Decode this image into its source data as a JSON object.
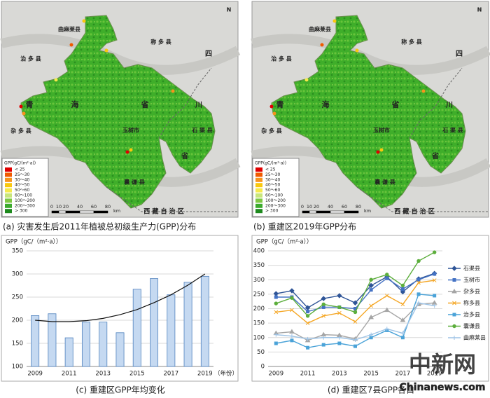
{
  "maps": [
    {
      "caption": "(a) 灾害发生后2011年植被总初级生产力(GPP)分布"
    },
    {
      "caption": "(b) 重建区2019年GPP分布"
    }
  ],
  "map_labels": [
    "曲麻莱县",
    "称 多 县",
    "治 多 县",
    "四",
    "川",
    "省",
    "青",
    "海",
    "省",
    "杂 多 县",
    "玉树市",
    "石 渠 县",
    "囊 谦 县",
    "西 藏 自 治 区",
    "N"
  ],
  "map_legend": {
    "title": "GPP(gC/(m²·a))",
    "items": [
      {
        "label": "< 25",
        "color": "#e00000"
      },
      {
        "label": "25～30",
        "color": "#f05a00"
      },
      {
        "label": "30～40",
        "color": "#f7941d"
      },
      {
        "label": "40～50",
        "color": "#f9c80e"
      },
      {
        "label": "50～60",
        "color": "#f5e94b"
      },
      {
        "label": "60～100",
        "color": "#c8e67a"
      },
      {
        "label": "100～200",
        "color": "#7fc843"
      },
      {
        "label": "200～300",
        "color": "#3caa2d"
      },
      {
        "label": "> 300",
        "color": "#1e8a1e"
      }
    ]
  },
  "map_scale": {
    "ticks": [
      0,
      10,
      20,
      40,
      60,
      80
    ],
    "unit": "km"
  },
  "chart_data": [
    {
      "type": "bar",
      "title": "GPP（gC/（m²·a））",
      "caption": "(c) 重建区GPP年均变化",
      "x_unit": "（年份）",
      "categories": [
        "2009",
        null,
        "2011",
        null,
        "2013",
        null,
        "2015",
        null,
        "2017",
        null,
        "2019"
      ],
      "values": [
        210,
        214,
        162,
        196,
        196,
        173,
        267,
        290,
        255,
        282,
        295
      ],
      "trend": [
        200,
        197,
        197,
        199,
        204,
        212,
        223,
        238,
        255,
        276,
        300
      ],
      "color": "#c5d9f1",
      "edge_color": "#4f81bd",
      "ylim": [
        100,
        350
      ],
      "yticks": [
        100,
        150,
        200,
        250,
        300,
        350
      ],
      "grid": true
    },
    {
      "type": "line",
      "title": "GPP（gC/（m²·a））",
      "caption": "(d) 重建区7县GPP各自",
      "categories": [
        "2009",
        null,
        "2011",
        null,
        "2013",
        null,
        "2015",
        null,
        "2017",
        null,
        "2019"
      ],
      "series": [
        {
          "name": "石渠县",
          "color": "#2f5597",
          "marker": "diamond",
          "values": [
            252,
            262,
            203,
            235,
            245,
            220,
            280,
            310,
            258,
            303,
            322
          ]
        },
        {
          "name": "玉树市",
          "color": "#4472c4",
          "marker": "square",
          "values": [
            240,
            240,
            190,
            205,
            205,
            200,
            265,
            305,
            268,
            300,
            320
          ]
        },
        {
          "name": "杂多县",
          "color": "#a5a5a5",
          "marker": "triangle",
          "values": [
            115,
            120,
            90,
            110,
            108,
            95,
            170,
            195,
            160,
            215,
            220
          ]
        },
        {
          "name": "称多县",
          "color": "#f5a623",
          "marker": "cross",
          "values": [
            188,
            195,
            150,
            175,
            185,
            155,
            210,
            245,
            215,
            290,
            298
          ]
        },
        {
          "name": "治多县",
          "color": "#4ba3d8",
          "marker": "square",
          "values": [
            80,
            90,
            65,
            75,
            80,
            70,
            100,
            125,
            100,
            250,
            245
          ]
        },
        {
          "name": "囊谦县",
          "color": "#5cae3c",
          "marker": "circle",
          "values": [
            218,
            237,
            175,
            215,
            205,
            188,
            300,
            318,
            280,
            365,
            395
          ]
        },
        {
          "name": "曲麻莱县",
          "color": "#9dc3e6",
          "marker": "plus",
          "values": [
            110,
            105,
            95,
            100,
            100,
            92,
            110,
            130,
            115,
            220,
            210
          ]
        }
      ],
      "ylim": [
        0,
        400
      ],
      "yticks": [
        0,
        50,
        100,
        150,
        200,
        250,
        300,
        350,
        400
      ],
      "grid": true
    }
  ],
  "watermark": {
    "logo": "中新网",
    "site": "Chinanews.com"
  }
}
